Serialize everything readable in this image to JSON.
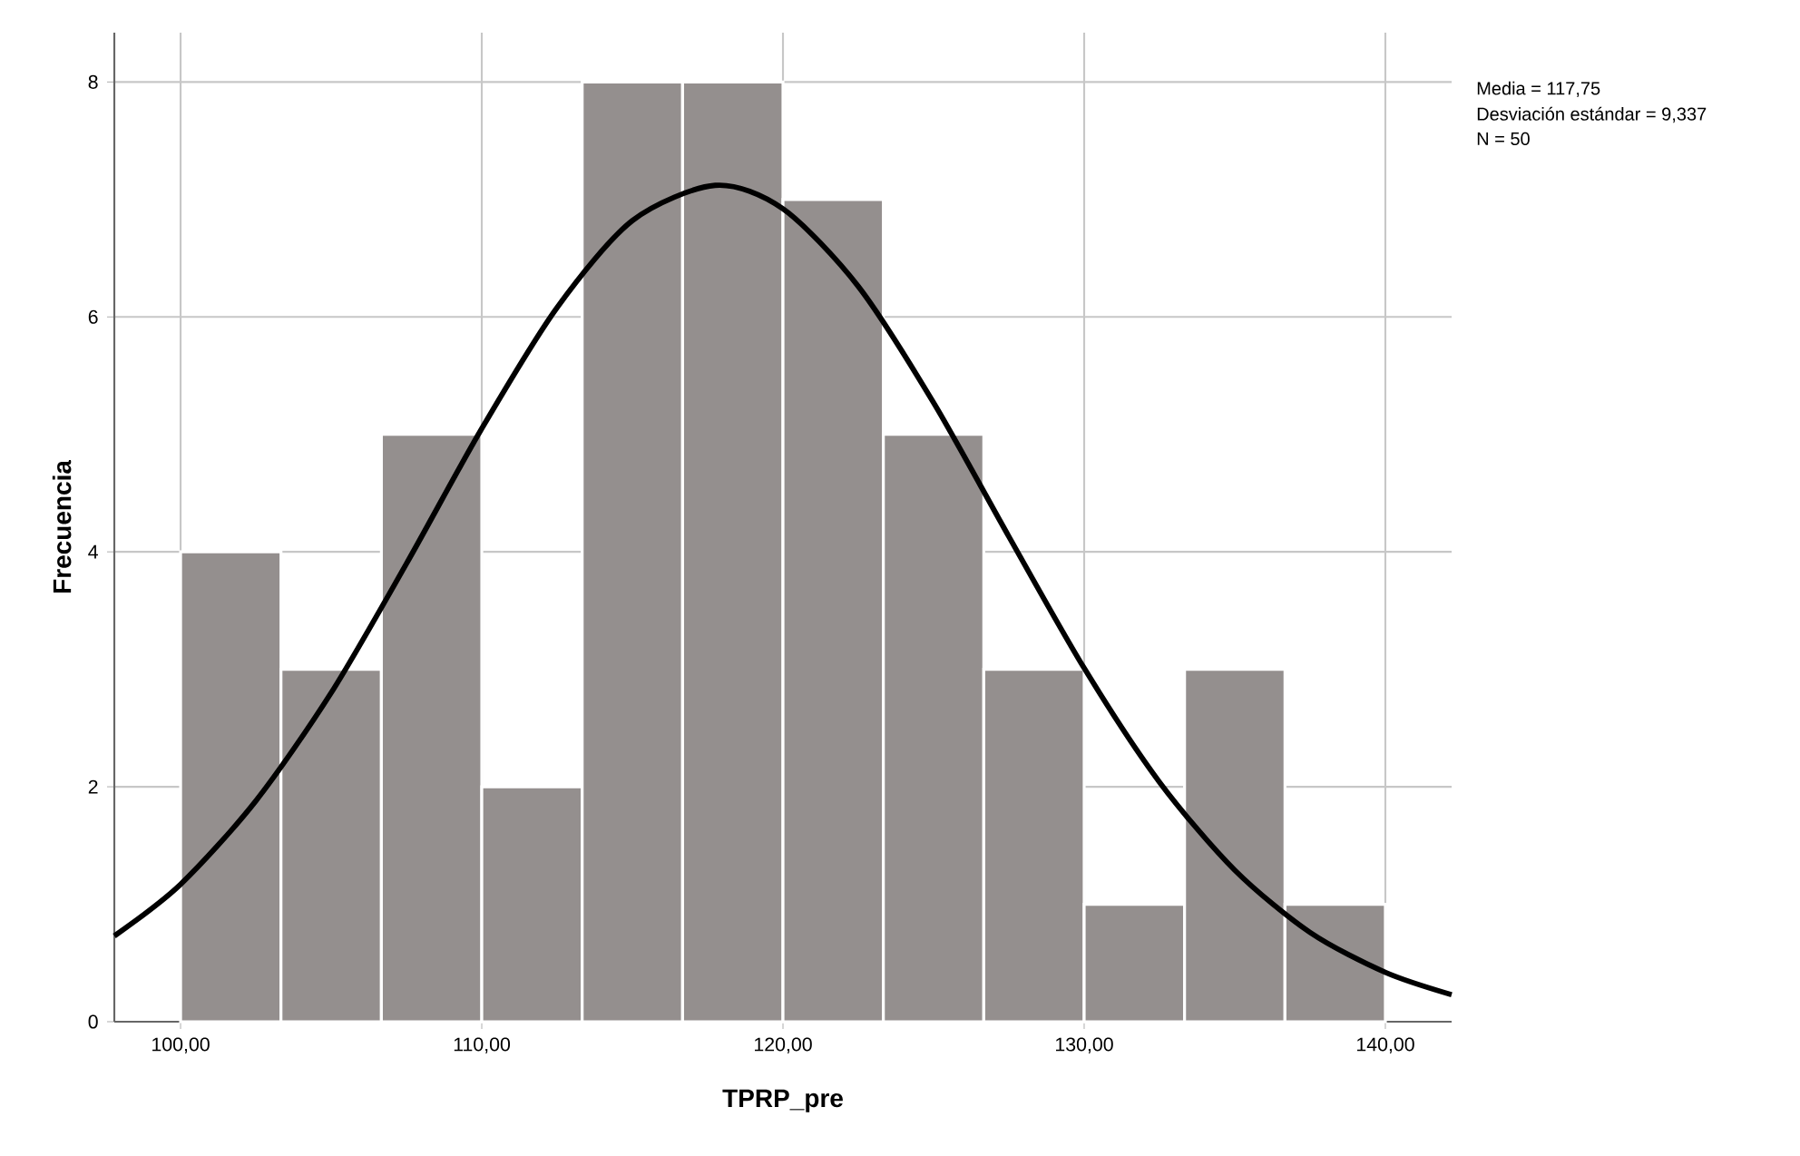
{
  "chart_data": {
    "type": "histogram",
    "xlabel": "TPRP_pre",
    "ylabel": "Frecuencia",
    "series": [
      {
        "type": "histogram",
        "bins": [
          100,
          103.333,
          106.667,
          110,
          113.333,
          116.667,
          120,
          123.333,
          126.667,
          130,
          133.333,
          136.667,
          140
        ],
        "values": [
          4,
          3,
          5,
          2,
          8,
          8,
          7,
          5,
          3,
          1,
          3,
          1
        ],
        "color": "#948f8e"
      },
      {
        "type": "line",
        "x": [
          97.8,
          100,
          102.5,
          105,
          107.5,
          110,
          112.5,
          115,
          117.75,
          120,
          122.5,
          125,
          127.5,
          130,
          132.5,
          135,
          137.5,
          140,
          142.2
        ],
        "values": [
          0.73,
          1.17,
          1.88,
          2.8,
          3.9,
          5.05,
          6.08,
          6.82,
          7.12,
          6.92,
          6.26,
          5.27,
          4.13,
          3.01,
          2.04,
          1.29,
          0.76,
          0.42,
          0.23
        ],
        "color": "#000000"
      }
    ],
    "xlim": [
      97.8,
      142.2
    ],
    "ylim": [
      0,
      8.42
    ],
    "xticks": [
      {
        "value": 100,
        "label": "100,00"
      },
      {
        "value": 110,
        "label": "110,00"
      },
      {
        "value": 120,
        "label": "120,00"
      },
      {
        "value": 130,
        "label": "130,00"
      },
      {
        "value": 140,
        "label": "140,00"
      }
    ],
    "yticks": [
      0,
      2,
      4,
      6,
      8
    ],
    "grid": true,
    "annotations": [
      "Media = 117,75",
      "Desviación estándar = 9,337",
      "N = 50"
    ]
  }
}
